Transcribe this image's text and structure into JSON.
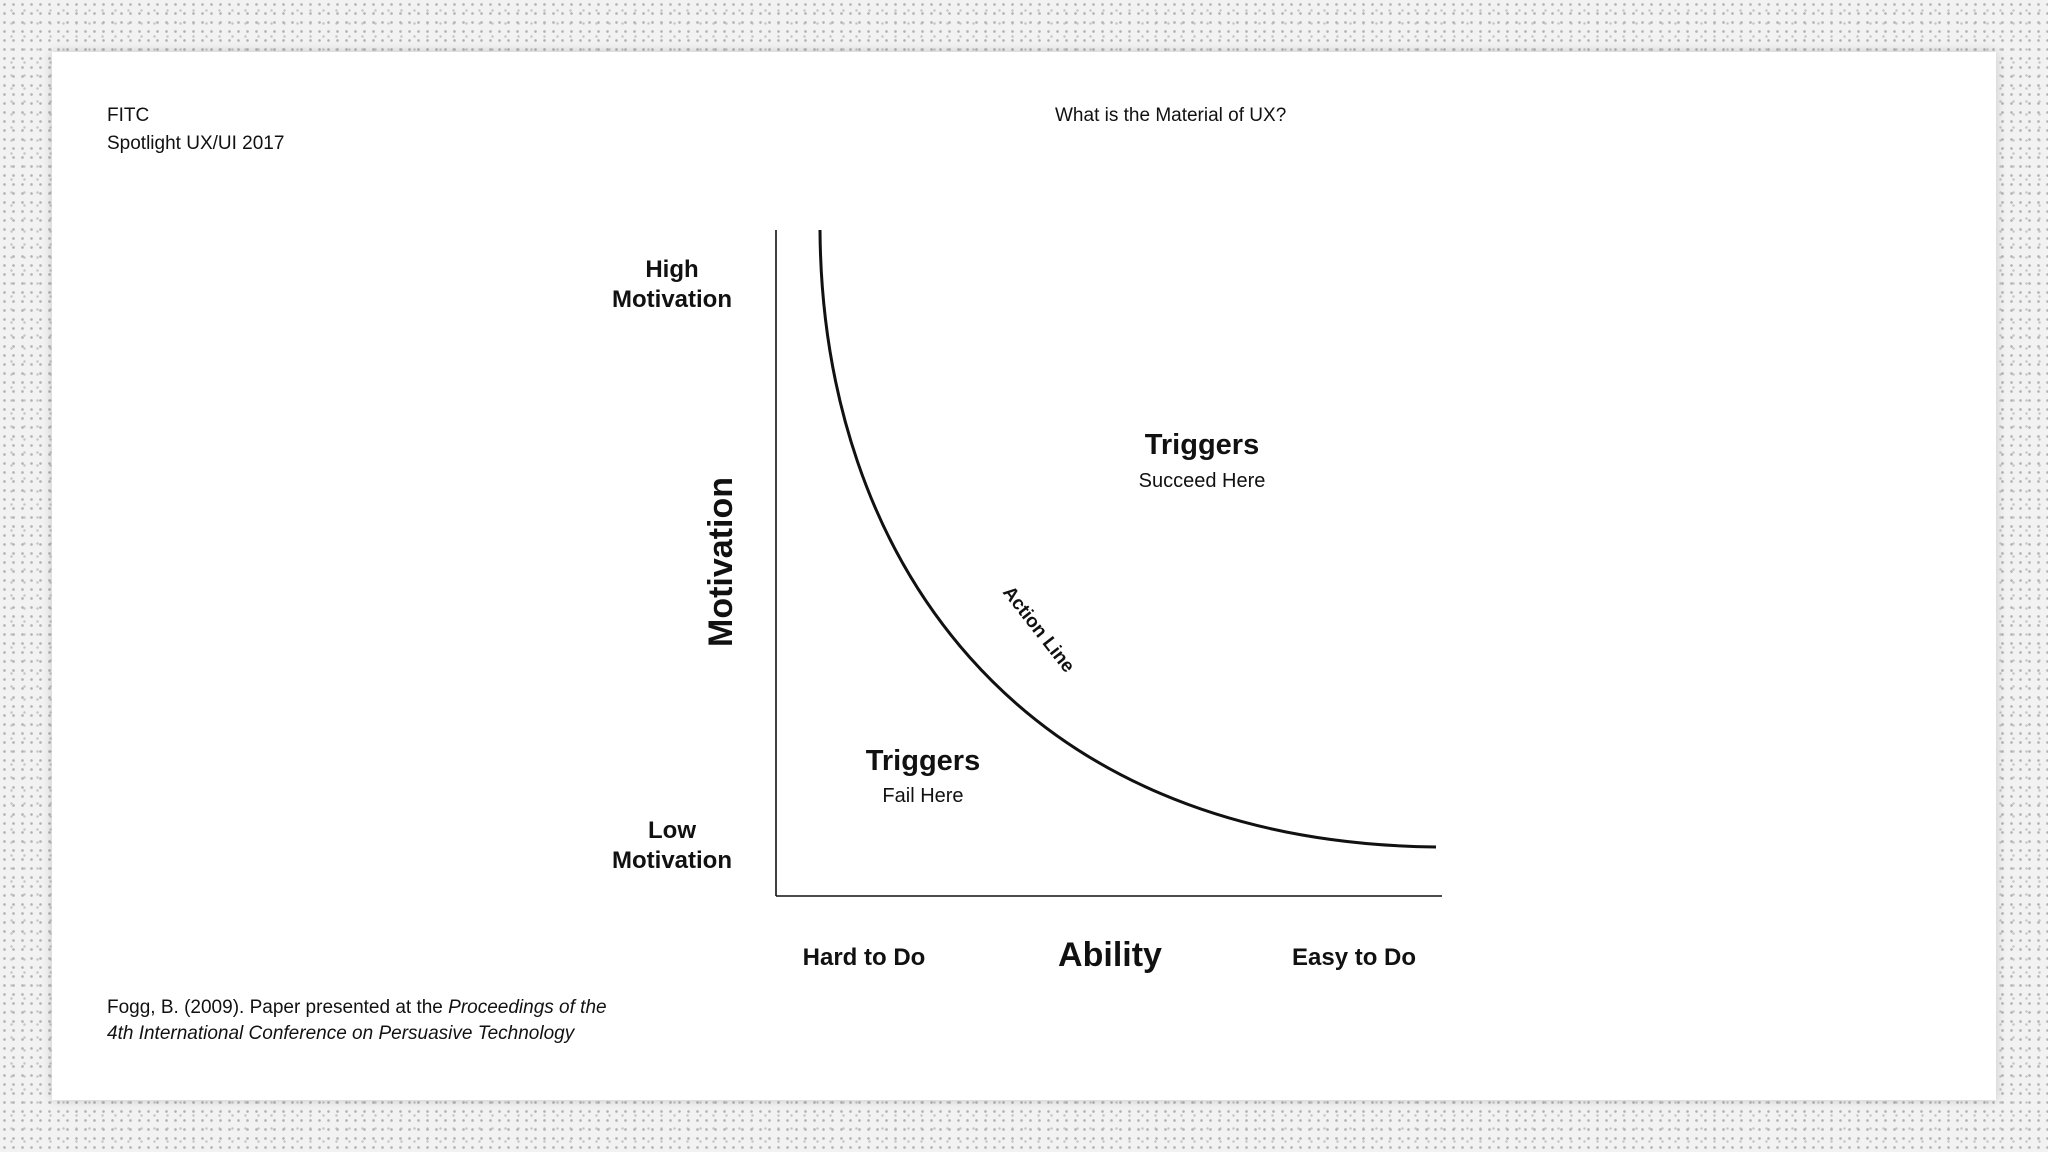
{
  "header": {
    "org": "FITC",
    "event": "Spotlight UX/UI 2017",
    "title": "What is the Material of UX?"
  },
  "diagram": {
    "y_axis_label": "Motivation",
    "y_high_line1": "High",
    "y_high_line2": "Motivation",
    "y_low_line1": "Low",
    "y_low_line2": "Motivation",
    "x_axis_label": "Ability",
    "x_left": "Hard to Do",
    "x_right": "Easy to Do",
    "curve_label": "Action Line",
    "region_above_title": "Triggers",
    "region_above_sub": "Succeed Here",
    "region_below_title": "Triggers",
    "region_below_sub": "Fail Here",
    "line_color": "#111111"
  },
  "citation": {
    "plain": "Fogg, B. (2009). Paper presented at the ",
    "italic1": "Proceedings of the",
    "italic2": "4th International Conference on Persuasive Technology"
  }
}
